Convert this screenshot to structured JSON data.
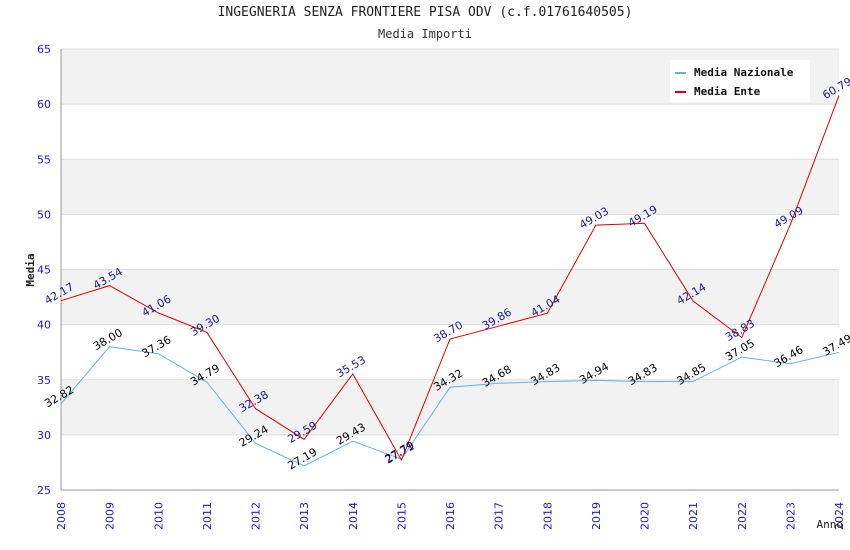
{
  "chart_data": {
    "type": "line",
    "title": "INGEGNERIA SENZA FRONTIERE PISA ODV (c.f.01761640505)",
    "subtitle": "Media Importi",
    "xlabel": "Anno",
    "ylabel": "Media",
    "ylim": [
      25,
      65
    ],
    "yticks": [
      25,
      30,
      35,
      40,
      45,
      50,
      55,
      60,
      65
    ],
    "categories": [
      "2008",
      "2009",
      "2010",
      "2011",
      "2012",
      "2013",
      "2014",
      "2015",
      "2016",
      "2017",
      "2018",
      "2019",
      "2020",
      "2021",
      "2022",
      "2023",
      "2024"
    ],
    "series": [
      {
        "name": "Media Nazionale",
        "color": "#6aaee6",
        "label_color": "#000000",
        "values": [
          32.82,
          38.0,
          37.36,
          34.79,
          29.24,
          27.19,
          29.43,
          27.79,
          34.32,
          34.68,
          34.83,
          34.94,
          34.83,
          34.85,
          37.05,
          36.46,
          37.49
        ],
        "labels": [
          "32.82",
          "38.00",
          "37.36",
          "34.79",
          "29.24",
          "27.19",
          "29.43",
          "27.79",
          "34.32",
          "34.68",
          "34.83",
          "34.94",
          "34.83",
          "34.85",
          "37.05",
          "36.46",
          "37.49"
        ]
      },
      {
        "name": "Media Ente",
        "color": "#e00000",
        "label_color": "#1a1a8c",
        "values": [
          42.17,
          43.54,
          41.06,
          39.3,
          32.38,
          29.59,
          35.53,
          27.71,
          38.7,
          39.86,
          41.04,
          49.03,
          49.19,
          42.14,
          38.83,
          49.09,
          60.79
        ],
        "labels": [
          "42.17",
          "43.54",
          "41.06",
          "39.30",
          "32.38",
          "29.59",
          "35.53",
          "27.71",
          "38.70",
          "39.86",
          "41.04",
          "49.03",
          "49.19",
          "42.14",
          "38.83",
          "49.09",
          "60.79"
        ]
      }
    ],
    "grid": true,
    "legend_position": "top-right",
    "colors": {
      "band": "#f2f2f2",
      "gridline": "#dddddd",
      "axis_tick_text": "#1a1acc",
      "axis": "#999999"
    }
  }
}
